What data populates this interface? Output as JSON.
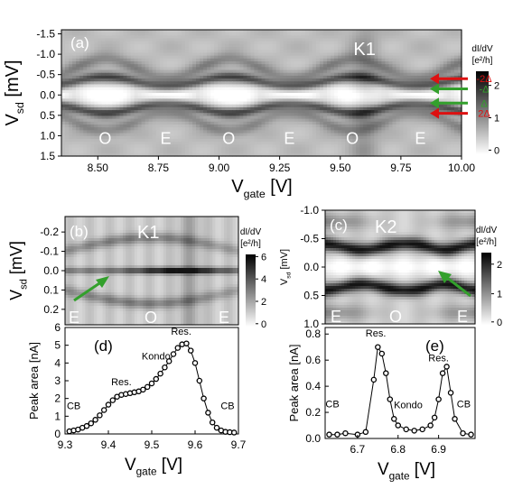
{
  "chart_data": [
    {
      "panel": "(a)",
      "type": "heatmap",
      "label": "K1",
      "xlabel": "V",
      "xlabel_sub": "gate",
      "xlabel_unit": " [V]",
      "ylabel": "V",
      "ylabel_sub": "sd",
      "ylabel_unit": " [mV]",
      "xlim": [
        8.35,
        10.0
      ],
      "ylim": [
        -1.6,
        1.5
      ],
      "y_inverted": true,
      "xticks": [
        "8.50",
        "8.75",
        "9.00",
        "9.25",
        "9.50",
        "9.75",
        "10.00"
      ],
      "xtick_values": [
        8.5,
        8.75,
        9.0,
        9.25,
        9.5,
        9.75,
        10.0
      ],
      "yticks": [
        "-1.5",
        "-1.0",
        "-0.5",
        "0.0",
        "0.5",
        "1.0",
        "1.5"
      ],
      "ytick_values": [
        -1.5,
        -1.0,
        -0.5,
        0.0,
        0.5,
        1.0,
        1.5
      ],
      "parity_labels": [
        "O",
        "E",
        "O",
        "E",
        "O",
        "E"
      ],
      "parity_x": [
        8.53,
        8.78,
        9.04,
        9.29,
        9.55,
        9.83
      ],
      "parity_y": 1.05,
      "colorbar": {
        "title": "dI/dV",
        "unit": "[e²/h]",
        "ticks": [
          "2",
          "1",
          "0"
        ],
        "range": [
          0,
          2.4
        ]
      },
      "arrows": [
        {
          "label": "-2Δ",
          "color": "#dd1111",
          "y": -0.4
        },
        {
          "label": "-Δ",
          "color": "#33a02c",
          "y": -0.15
        },
        {
          "label": "Δ",
          "color": "#33a02c",
          "y": 0.2
        },
        {
          "label": "2Δ",
          "color": "#dd1111",
          "y": 0.45
        }
      ]
    },
    {
      "panel": "(b)",
      "type": "heatmap",
      "label": "K1",
      "ylabel": "V",
      "ylabel_sub": "sd",
      "ylabel_unit": " [mV]",
      "ylim": [
        -0.28,
        0.28
      ],
      "y_inverted": true,
      "yticks": [
        "-0.2",
        "-0.1",
        "0.0",
        "0.1",
        "0.2"
      ],
      "ytick_values": [
        -0.2,
        -0.1,
        0.0,
        0.1,
        0.2
      ],
      "parity_labels": [
        "E",
        "O",
        "E"
      ],
      "colorbar": {
        "title": "dI/dV",
        "unit": "[e²/h]",
        "ticks": [
          "6",
          "4",
          "2",
          "0"
        ],
        "range": [
          0,
          6
        ]
      }
    },
    {
      "panel": "(c)",
      "type": "heatmap",
      "label": "K2",
      "ylabel": "V",
      "ylabel_sub": "sd",
      "ylabel_unit": " [mV]",
      "ylim": [
        -1.0,
        1.0
      ],
      "y_inverted": true,
      "yticks": [
        "-1.0",
        "-0.5",
        "0.0",
        "0.5",
        "1.0"
      ],
      "ytick_values": [
        -1.0,
        -0.5,
        0.0,
        0.5,
        1.0
      ],
      "parity_labels": [
        "E",
        "O",
        "E"
      ],
      "colorbar": {
        "title": "dI/dV",
        "unit": "[e²/h]",
        "ticks": [
          "2",
          "1",
          "0"
        ],
        "range": [
          0,
          2.4
        ]
      }
    },
    {
      "panel": "(d)",
      "type": "scatter",
      "xlabel": "V",
      "xlabel_sub": "gate",
      "xlabel_unit": " [V]",
      "ylabel": "Peak area [nA]",
      "xlim": [
        9.3,
        9.7
      ],
      "ylim": [
        0,
        6
      ],
      "xticks": [
        "9.3",
        "9.4",
        "9.5",
        "9.6",
        "9.7"
      ],
      "xtick_values": [
        9.3,
        9.4,
        9.5,
        9.6,
        9.7
      ],
      "yticks": [
        "0",
        "1",
        "2",
        "3",
        "4",
        "5",
        "6"
      ],
      "ytick_values": [
        0,
        1,
        2,
        3,
        4,
        5,
        6
      ],
      "annotations": [
        {
          "text": "CB",
          "x": 9.32,
          "y": 1.4
        },
        {
          "text": "Res.",
          "x": 9.43,
          "y": 2.75
        },
        {
          "text": "Kondo",
          "x": 9.51,
          "y": 4.2
        },
        {
          "text": "Res.",
          "x": 9.568,
          "y": 5.6
        },
        {
          "text": "CB",
          "x": 9.675,
          "y": 1.4
        }
      ],
      "x": [
        9.31,
        9.32,
        9.33,
        9.34,
        9.35,
        9.36,
        9.37,
        9.38,
        9.39,
        9.4,
        9.41,
        9.42,
        9.43,
        9.44,
        9.45,
        9.46,
        9.47,
        9.48,
        9.49,
        9.5,
        9.51,
        9.52,
        9.53,
        9.54,
        9.55,
        9.56,
        9.57,
        9.58,
        9.59,
        9.6,
        9.61,
        9.62,
        9.63,
        9.64,
        9.65,
        9.66,
        9.67,
        9.68,
        9.69
      ],
      "y": [
        0.15,
        0.2,
        0.25,
        0.35,
        0.45,
        0.6,
        0.8,
        1.05,
        1.35,
        1.65,
        1.9,
        2.1,
        2.2,
        2.25,
        2.3,
        2.35,
        2.4,
        2.5,
        2.65,
        2.85,
        3.1,
        3.4,
        3.75,
        4.1,
        4.5,
        4.85,
        5.05,
        5.1,
        4.7,
        4.0,
        3.0,
        2.0,
        1.2,
        0.65,
        0.35,
        0.2,
        0.12,
        0.1,
        0.08
      ]
    },
    {
      "panel": "(e)",
      "type": "scatter",
      "xlabel": "V",
      "xlabel_sub": "gate",
      "xlabel_unit": " [V]",
      "ylabel": "Peak area [nA]",
      "xlim": [
        6.62,
        6.99
      ],
      "ylim": [
        0,
        0.85
      ],
      "xticks": [
        "6.7",
        "6.8",
        "6.9"
      ],
      "xtick_values": [
        6.7,
        6.8,
        6.9
      ],
      "yticks": [
        "0.0",
        "0.2",
        "0.4",
        "0.6",
        "0.8"
      ],
      "ytick_values": [
        0,
        0.2,
        0.4,
        0.6,
        0.8
      ],
      "annotations": [
        {
          "text": "CB",
          "x": 6.638,
          "y": 0.24
        },
        {
          "text": "Res.",
          "x": 6.745,
          "y": 0.78
        },
        {
          "text": "Kondo",
          "x": 6.825,
          "y": 0.23
        },
        {
          "text": "Res.",
          "x": 6.9,
          "y": 0.59
        },
        {
          "text": "CB",
          "x": 6.962,
          "y": 0.24
        }
      ],
      "x": [
        6.63,
        6.65,
        6.67,
        6.7,
        6.72,
        6.74,
        6.75,
        6.76,
        6.77,
        6.78,
        6.79,
        6.8,
        6.82,
        6.84,
        6.86,
        6.88,
        6.89,
        6.9,
        6.91,
        6.92,
        6.93,
        6.94,
        6.96,
        6.98
      ],
      "y": [
        0.03,
        0.03,
        0.04,
        0.03,
        0.05,
        0.45,
        0.7,
        0.65,
        0.5,
        0.3,
        0.15,
        0.1,
        0.07,
        0.06,
        0.07,
        0.1,
        0.16,
        0.3,
        0.5,
        0.55,
        0.35,
        0.15,
        0.04,
        0.03
      ]
    }
  ]
}
